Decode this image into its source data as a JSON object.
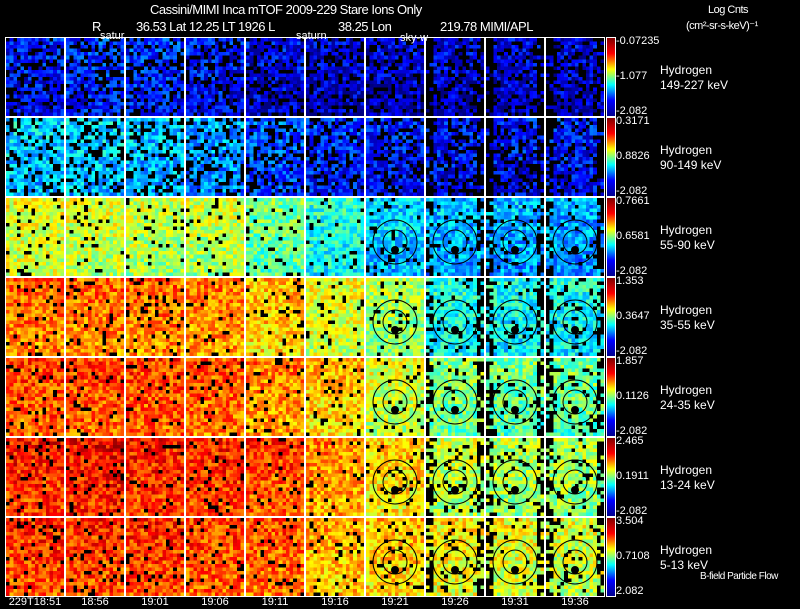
{
  "header": {
    "title": "Cassini/MIMI Inca mTOF  2009-229   Stare   Ions Only",
    "r_label": "R",
    "position": "36.53 Lat 12.25 LT 1926 L",
    "lon": "38.25 Lon",
    "lon_value": "219.78  MIMI/APL",
    "units_title": "Log Cnts",
    "units": "(cm²-sr-s-keV)⁻¹"
  },
  "overlay_labels": [
    "satur",
    "saturn",
    "sky-w"
  ],
  "footer_label": "B-field Particle Flow",
  "colors": {
    "background": "#000000",
    "frame": "#ffffff"
  },
  "chart_data": {
    "type": "heatmap",
    "title": "Cassini/MIMI Inca mTOF  2009-229   Stare   Ions Only",
    "columns": [
      "229T18:51",
      "18:56",
      "19:01",
      "19:06",
      "19:11",
      "19:16",
      "19:21",
      "19:26",
      "19:31",
      "19:36"
    ],
    "rows": [
      {
        "species": "Hydrogen",
        "energy": "149-227 keV",
        "max": "-0.07235",
        "mid": "-1.077",
        "min": "-2.082"
      },
      {
        "species": "Hydrogen",
        "energy": "90-149 keV",
        "max": "0.3171",
        "mid": "0.8826",
        "min": "-2.082"
      },
      {
        "species": "Hydrogen",
        "energy": "55-90 keV",
        "max": "0.7661",
        "mid": "0.6581",
        "min": "-2.082"
      },
      {
        "species": "Hydrogen",
        "energy": "35-55 keV",
        "max": "1.353",
        "mid": "0.3647",
        "min": "-2.082"
      },
      {
        "species": "Hydrogen",
        "energy": "24-35 keV",
        "max": "1.857",
        "mid": "0.1126",
        "min": "-2.082"
      },
      {
        "species": "Hydrogen",
        "energy": "13-24 keV",
        "max": "2.465",
        "mid": "0.1911",
        "min": "-2.082"
      },
      {
        "species": "Hydrogen",
        "energy": "5-13 keV",
        "max": "3.504",
        "mid": "0.7108",
        "min": "2.082"
      }
    ],
    "approx_mean_level": [
      [
        0.15,
        0.18,
        0.18,
        0.15,
        0.12,
        0.1,
        0.1,
        0.1,
        0.1,
        0.1
      ],
      [
        0.35,
        0.35,
        0.33,
        0.3,
        0.22,
        0.18,
        0.15,
        0.15,
        0.15,
        0.15
      ],
      [
        0.62,
        0.6,
        0.58,
        0.58,
        0.5,
        0.42,
        0.35,
        0.32,
        0.32,
        0.3
      ],
      [
        0.78,
        0.78,
        0.78,
        0.76,
        0.7,
        0.62,
        0.55,
        0.42,
        0.4,
        0.4
      ],
      [
        0.82,
        0.82,
        0.82,
        0.8,
        0.76,
        0.7,
        0.6,
        0.52,
        0.5,
        0.5
      ],
      [
        0.86,
        0.88,
        0.86,
        0.85,
        0.82,
        0.75,
        0.68,
        0.58,
        0.56,
        0.55
      ],
      [
        0.84,
        0.84,
        0.84,
        0.82,
        0.8,
        0.72,
        0.7,
        0.65,
        0.62,
        0.6
      ]
    ],
    "colormap": "rainbow (blue-cyan-green-yellow-red)"
  }
}
